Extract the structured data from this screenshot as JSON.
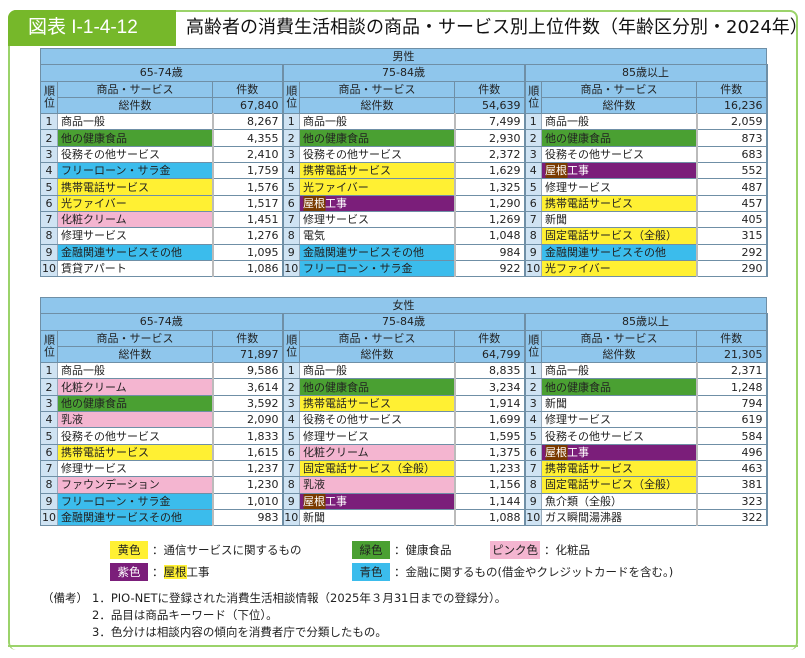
{
  "header": {
    "figure_no": "図表 I-1-4-12",
    "title": "高齢者の消費生活相談の商品・サービス別上位件数（年齢区分別・2024年）"
  },
  "labels": {
    "rank": "順位",
    "item": "商品・サービス",
    "count": "件数",
    "total": "総件数"
  },
  "tables": [
    {
      "gender": "男性",
      "groups": [
        {
          "age": "65-74歳",
          "total": "67,840",
          "rows": [
            {
              "r": "1",
              "name": "商品一般",
              "n": "8,267",
              "c": ""
            },
            {
              "r": "2",
              "name": "他の健康食品",
              "n": "4,355",
              "c": "g"
            },
            {
              "r": "3",
              "name": "役務その他サービス",
              "n": "2,410",
              "c": ""
            },
            {
              "r": "4",
              "name": "フリーローン・サラ金",
              "n": "1,759",
              "c": "b"
            },
            {
              "r": "5",
              "name": "携帯電話サービス",
              "n": "1,576",
              "c": "y"
            },
            {
              "r": "6",
              "name": "光ファイバー",
              "n": "1,517",
              "c": "y"
            },
            {
              "r": "7",
              "name": "化粧クリーム",
              "n": "1,451",
              "c": "p"
            },
            {
              "r": "8",
              "name": "修理サービス",
              "n": "1,276",
              "c": ""
            },
            {
              "r": "9",
              "name": "金融関連サービスその他",
              "n": "1,095",
              "c": "b"
            },
            {
              "r": "10",
              "name": "賃貸アパート",
              "n": "1,086",
              "c": ""
            }
          ]
        },
        {
          "age": "75-84歳",
          "total": "54,639",
          "rows": [
            {
              "r": "1",
              "name": "商品一般",
              "n": "7,499",
              "c": ""
            },
            {
              "r": "2",
              "name": "他の健康食品",
              "n": "2,930",
              "c": "g"
            },
            {
              "r": "3",
              "name": "役務その他サービス",
              "n": "2,372",
              "c": ""
            },
            {
              "r": "4",
              "name": "携帯電話サービス",
              "n": "1,629",
              "c": "y"
            },
            {
              "r": "5",
              "name": "光ファイバー",
              "n": "1,325",
              "c": "y"
            },
            {
              "r": "6",
              "name": "屋根工事",
              "n": "1,290",
              "c": "v"
            },
            {
              "r": "7",
              "name": "修理サービス",
              "n": "1,269",
              "c": ""
            },
            {
              "r": "8",
              "name": "電気",
              "n": "1,048",
              "c": ""
            },
            {
              "r": "9",
              "name": "金融関連サービスその他",
              "n": "984",
              "c": "b"
            },
            {
              "r": "10",
              "name": "フリーローン・サラ金",
              "n": "922",
              "c": "b"
            }
          ]
        },
        {
          "age": "85歳以上",
          "total": "16,236",
          "rows": [
            {
              "r": "1",
              "name": "商品一般",
              "n": "2,059",
              "c": ""
            },
            {
              "r": "2",
              "name": "他の健康食品",
              "n": "873",
              "c": "g"
            },
            {
              "r": "3",
              "name": "役務その他サービス",
              "n": "683",
              "c": ""
            },
            {
              "r": "4",
              "name": "屋根工事",
              "n": "552",
              "c": "v"
            },
            {
              "r": "5",
              "name": "修理サービス",
              "n": "487",
              "c": ""
            },
            {
              "r": "6",
              "name": "携帯電話サービス",
              "n": "457",
              "c": "y"
            },
            {
              "r": "7",
              "name": "新聞",
              "n": "405",
              "c": ""
            },
            {
              "r": "8",
              "name": "固定電話サービス（全般）",
              "n": "315",
              "c": "y"
            },
            {
              "r": "9",
              "name": "金融関連サービスその他",
              "n": "292",
              "c": "b"
            },
            {
              "r": "10",
              "name": "光ファイバー",
              "n": "290",
              "c": "y"
            }
          ]
        }
      ]
    },
    {
      "gender": "女性",
      "groups": [
        {
          "age": "65-74歳",
          "total": "71,897",
          "rows": [
            {
              "r": "1",
              "name": "商品一般",
              "n": "9,586",
              "c": ""
            },
            {
              "r": "2",
              "name": "化粧クリーム",
              "n": "3,614",
              "c": "p"
            },
            {
              "r": "3",
              "name": "他の健康食品",
              "n": "3,592",
              "c": "g"
            },
            {
              "r": "4",
              "name": "乳液",
              "n": "2,090",
              "c": "p"
            },
            {
              "r": "5",
              "name": "役務その他サービス",
              "n": "1,833",
              "c": ""
            },
            {
              "r": "6",
              "name": "携帯電話サービス",
              "n": "1,615",
              "c": "y"
            },
            {
              "r": "7",
              "name": "修理サービス",
              "n": "1,237",
              "c": ""
            },
            {
              "r": "8",
              "name": "ファウンデーション",
              "n": "1,230",
              "c": "p"
            },
            {
              "r": "9",
              "name": "フリーローン・サラ金",
              "n": "1,010",
              "c": "b"
            },
            {
              "r": "10",
              "name": "金融関連サービスその他",
              "n": "983",
              "c": "b"
            }
          ]
        },
        {
          "age": "75-84歳",
          "total": "64,799",
          "rows": [
            {
              "r": "1",
              "name": "商品一般",
              "n": "8,835",
              "c": ""
            },
            {
              "r": "2",
              "name": "他の健康食品",
              "n": "3,234",
              "c": "g"
            },
            {
              "r": "3",
              "name": "携帯電話サービス",
              "n": "1,914",
              "c": "y"
            },
            {
              "r": "4",
              "name": "役務その他サービス",
              "n": "1,699",
              "c": ""
            },
            {
              "r": "5",
              "name": "修理サービス",
              "n": "1,595",
              "c": ""
            },
            {
              "r": "6",
              "name": "化粧クリーム",
              "n": "1,375",
              "c": "p"
            },
            {
              "r": "7",
              "name": "固定電話サービス（全般）",
              "n": "1,233",
              "c": "y"
            },
            {
              "r": "8",
              "name": "乳液",
              "n": "1,156",
              "c": "p"
            },
            {
              "r": "9",
              "name": "屋根工事",
              "n": "1,144",
              "c": "v"
            },
            {
              "r": "10",
              "name": "新聞",
              "n": "1,088",
              "c": ""
            }
          ]
        },
        {
          "age": "85歳以上",
          "total": "21,305",
          "rows": [
            {
              "r": "1",
              "name": "商品一般",
              "n": "2,371",
              "c": ""
            },
            {
              "r": "2",
              "name": "他の健康食品",
              "n": "1,248",
              "c": "g"
            },
            {
              "r": "3",
              "name": "新聞",
              "n": "794",
              "c": ""
            },
            {
              "r": "4",
              "name": "修理サービス",
              "n": "619",
              "c": ""
            },
            {
              "r": "5",
              "name": "役務その他サービス",
              "n": "584",
              "c": ""
            },
            {
              "r": "6",
              "name": "屋根工事",
              "n": "496",
              "c": "v"
            },
            {
              "r": "7",
              "name": "携帯電話サービス",
              "n": "463",
              "c": "y"
            },
            {
              "r": "8",
              "name": "固定電話サービス（全般）",
              "n": "381",
              "c": "y"
            },
            {
              "r": "9",
              "name": "魚介類（全般）",
              "n": "323",
              "c": ""
            },
            {
              "r": "10",
              "name": "ガス瞬間湯沸器",
              "n": "322",
              "c": ""
            }
          ]
        }
      ]
    }
  ],
  "legend": {
    "yellow": {
      "label": "黄色",
      "desc": "：通信サービスに関するもの"
    },
    "green": {
      "label": "緑色",
      "desc": "：健康食品"
    },
    "pink": {
      "label": "ピンク色",
      "desc": "：化粧品"
    },
    "purple": {
      "label": "紫色",
      "desc_a": "：",
      "desc_roof": "屋根",
      "desc_b": "工事"
    },
    "blue": {
      "label": "青色",
      "desc": "：金融に関するもの(借金やクレジットカードを含む。)"
    }
  },
  "notes": {
    "prefix": "（備考）",
    "items": [
      "1．PIO-NETに登録された消費生活相談情報（2025年３月31日までの登録分）。",
      "2．品目は商品キーワード（下位）。",
      "3．色分けは相談内容の傾向を消費者庁で分類したもの。"
    ]
  },
  "colors": {
    "header": "#8fc6ec",
    "yellow": "#fff033",
    "green": "#4aa032",
    "pink": "#f4b5d0",
    "blue": "#3bbcec",
    "purple": "#7b1e7a",
    "frame": "#76b82a"
  }
}
